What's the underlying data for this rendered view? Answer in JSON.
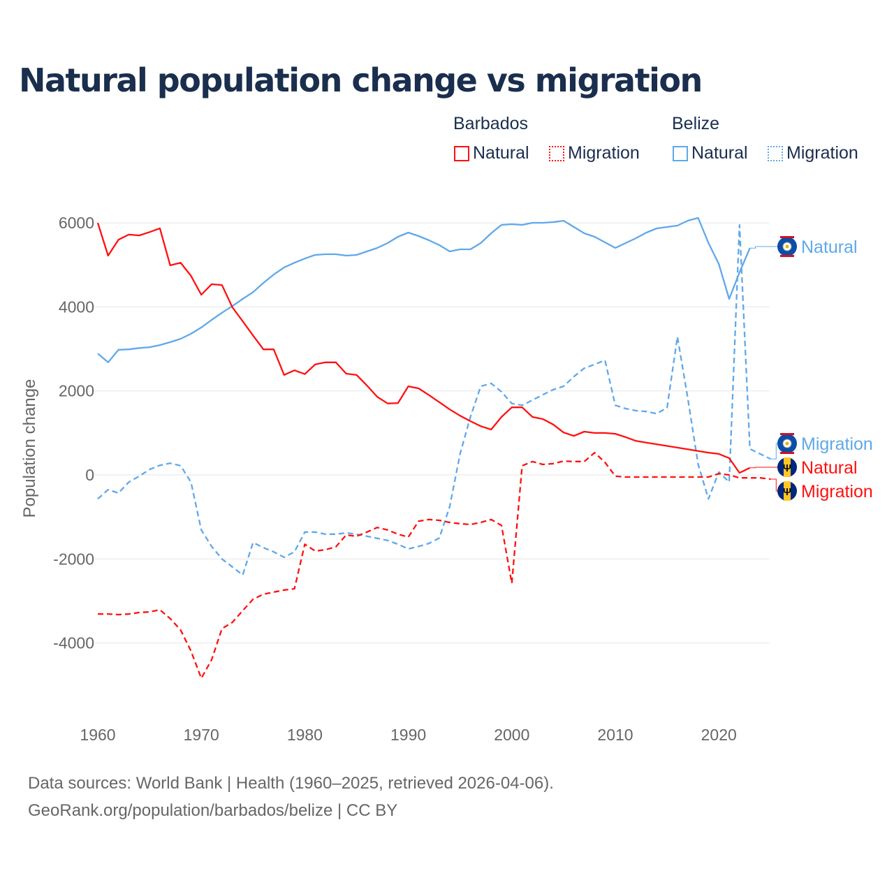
{
  "title": "Natural population change vs migration",
  "legend": {
    "groups": [
      {
        "name": "Barbados",
        "items": [
          "Natural",
          "Migration"
        ]
      },
      {
        "name": "Belize",
        "items": [
          "Natural",
          "Migration"
        ]
      }
    ]
  },
  "colors": {
    "barbados": "#ff1010",
    "belize": "#5fa8ea",
    "title": "#1a2e4d",
    "axis_text": "#666666",
    "grid": "#e6e6e6"
  },
  "sources": [
    "Data sources: World Bank | Health (1960–2025, retrieved 2026-04-06).",
    "GeoRank.org/population/barbados/belize | CC BY"
  ],
  "chart_data": {
    "type": "line",
    "title": "Natural population change vs migration",
    "xlabel": "",
    "ylabel": "Population change",
    "xlim": [
      1960,
      2025
    ],
    "ylim": [
      -5000,
      6000
    ],
    "yticks": [
      6000,
      4000,
      2000,
      0,
      -2000,
      -4000
    ],
    "xticks": [
      1960,
      1970,
      1980,
      1990,
      2000,
      2010,
      2020
    ],
    "grid": true,
    "legend_position": "top-right",
    "series": [
      {
        "name": "Barbados Natural",
        "country": "Barbados",
        "kind": "Natural",
        "color": "#ff1010",
        "dashed": false,
        "label": "Natural",
        "start": 1960,
        "values": [
          6000,
          5220,
          5600,
          5720,
          5700,
          5780,
          5870,
          4990,
          5050,
          4740,
          4290,
          4540,
          4520,
          3990,
          3660,
          3320,
          2990,
          2990,
          2380,
          2490,
          2400,
          2630,
          2680,
          2680,
          2410,
          2380,
          2130,
          1860,
          1700,
          1710,
          2110,
          2060,
          1900,
          1730,
          1560,
          1410,
          1280,
          1160,
          1080,
          1380,
          1610,
          1610,
          1380,
          1330,
          1200,
          1010,
          930,
          1030,
          1000,
          1000,
          980,
          900,
          810,
          770,
          730,
          690,
          650,
          610,
          570,
          530,
          500,
          400,
          50,
          170
        ]
      },
      {
        "name": "Barbados Migration",
        "country": "Barbados",
        "kind": "Migration",
        "color": "#ff1010",
        "dashed": true,
        "label": "Migration",
        "start": 1960,
        "values": [
          -3310,
          -3310,
          -3325,
          -3310,
          -3275,
          -3260,
          -3210,
          -3420,
          -3690,
          -4190,
          -4840,
          -4400,
          -3660,
          -3510,
          -3230,
          -2960,
          -2840,
          -2790,
          -2740,
          -2710,
          -1650,
          -1810,
          -1780,
          -1710,
          -1430,
          -1460,
          -1360,
          -1250,
          -1310,
          -1410,
          -1480,
          -1100,
          -1060,
          -1080,
          -1130,
          -1160,
          -1180,
          -1130,
          -1060,
          -1200,
          -2580,
          220,
          320,
          250,
          270,
          330,
          320,
          320,
          530,
          300,
          -30,
          -50,
          -50,
          -50,
          -50,
          -50,
          -50,
          -50,
          -50,
          -50,
          30,
          0,
          -70,
          -70,
          -70,
          -100
        ]
      },
      {
        "name": "Belize Natural",
        "country": "Belize",
        "kind": "Natural",
        "color": "#5fa8ea",
        "dashed": false,
        "label": "Natural",
        "start": 1960,
        "values": [
          2890,
          2680,
          2980,
          2990,
          3020,
          3040,
          3090,
          3160,
          3240,
          3360,
          3510,
          3690,
          3860,
          4020,
          4190,
          4350,
          4570,
          4770,
          4940,
          5050,
          5150,
          5237,
          5254,
          5254,
          5220,
          5237,
          5320,
          5403,
          5520,
          5669,
          5769,
          5686,
          5586,
          5470,
          5320,
          5370,
          5370,
          5520,
          5752,
          5952,
          5968,
          5952,
          6002,
          6002,
          6018,
          6052,
          5902,
          5752,
          5669,
          5536,
          5403,
          5520,
          5636,
          5769,
          5869,
          5902,
          5935,
          6052,
          6118,
          5520,
          5021,
          4190,
          4821,
          5400
        ]
      },
      {
        "name": "Belize Migration",
        "country": "Belize",
        "kind": "Migration",
        "color": "#5fa8ea",
        "dashed": true,
        "label": "Migration",
        "start": 1960,
        "values": [
          -570,
          -350,
          -430,
          -170,
          -30,
          130,
          230,
          280,
          220,
          -170,
          -1310,
          -1700,
          -2000,
          -2190,
          -2380,
          -1610,
          -1730,
          -1830,
          -1960,
          -1830,
          -1360,
          -1360,
          -1410,
          -1410,
          -1380,
          -1410,
          -1460,
          -1510,
          -1560,
          -1650,
          -1760,
          -1700,
          -1630,
          -1500,
          -750,
          500,
          1380,
          2110,
          2180,
          1980,
          1700,
          1660,
          1780,
          1910,
          2030,
          2110,
          2340,
          2540,
          2630,
          2730,
          1660,
          1580,
          1530,
          1510,
          1460,
          1600,
          3290,
          1830,
          250,
          -570,
          70,
          -170,
          5950,
          620,
          500,
          380
        ]
      }
    ]
  }
}
